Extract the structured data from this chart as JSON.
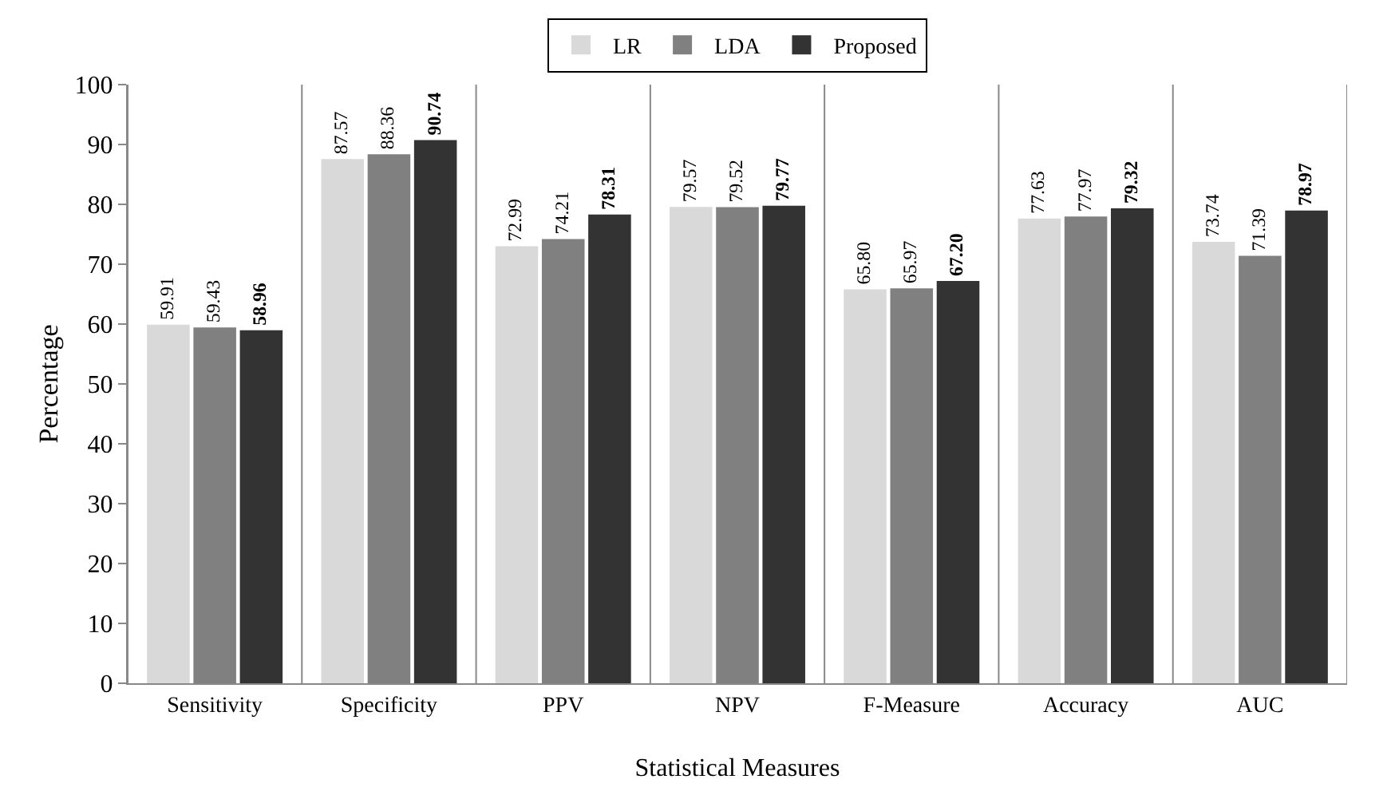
{
  "chart_data": {
    "type": "bar",
    "xlabel": "Statistical Measures",
    "ylabel": "Percentage",
    "categories": [
      "Sensitivity",
      "Specificity",
      "PPV",
      "NPV",
      "F-Measure",
      "Accuracy",
      "AUC"
    ],
    "series": [
      {
        "name": "LR",
        "color": "#d9d9d9",
        "values": [
          59.91,
          87.57,
          72.99,
          79.57,
          65.8,
          77.63,
          73.74
        ],
        "value_labels": [
          "59.91",
          "87.57",
          "72.99",
          "79.57",
          "65.80",
          "77.63",
          "73.74"
        ]
      },
      {
        "name": "LDA",
        "color": "#808080",
        "values": [
          59.43,
          88.36,
          74.21,
          79.52,
          65.97,
          77.97,
          71.39
        ],
        "value_labels": [
          "59.43",
          "88.36",
          "74.21",
          "79.52",
          "65.97",
          "77.97",
          "71.39"
        ]
      },
      {
        "name": "Proposed",
        "color": "#333333",
        "values": [
          58.96,
          90.74,
          78.31,
          79.77,
          67.2,
          79.32,
          78.97
        ],
        "value_labels": [
          "58.96",
          "90.74",
          "78.31",
          "79.77",
          "67.20",
          "79.32",
          "78.97"
        ]
      }
    ],
    "ylim": [
      0,
      100
    ],
    "yticks": [
      0,
      10,
      20,
      30,
      40,
      50,
      60,
      70,
      80,
      90,
      100
    ],
    "grid": "x",
    "legend": "top"
  }
}
